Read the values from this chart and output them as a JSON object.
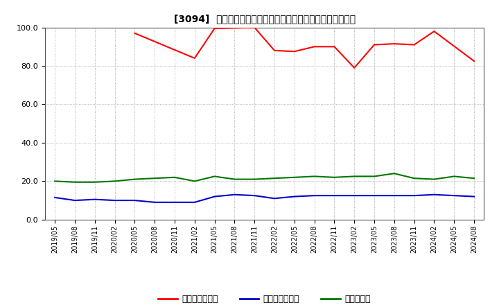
{
  "title": "[3094]  売上債権回転率、買入債務回転率、在庫回転率の推移",
  "background_color": "#ffffff",
  "grid_color": "#999999",
  "ylim": [
    0.0,
    100.0
  ],
  "yticks": [
    0.0,
    20.0,
    40.0,
    60.0,
    80.0,
    100.0
  ],
  "series": [
    {
      "name": "売上債権回転率",
      "color": "#ff0000",
      "x_indices": [
        4,
        7,
        8,
        10,
        11,
        12,
        13,
        14,
        15,
        16,
        17,
        18,
        19,
        21
      ],
      "values": [
        97.0,
        84.0,
        99.5,
        100.0,
        88.0,
        87.5,
        90.0,
        90.0,
        79.0,
        91.0,
        91.5,
        91.0,
        98.0,
        82.5
      ]
    },
    {
      "name": "買入債務回転率",
      "color": "#0000cc",
      "x_indices": [
        0,
        1,
        2,
        3,
        4,
        5,
        6,
        7,
        8,
        9,
        10,
        11,
        12,
        13,
        14,
        15,
        16,
        17,
        18,
        19,
        20,
        21
      ],
      "values": [
        11.5,
        10.0,
        10.5,
        10.0,
        10.0,
        9.0,
        9.0,
        9.0,
        12.0,
        13.0,
        12.5,
        11.0,
        12.0,
        12.5,
        12.5,
        12.5,
        12.5,
        12.5,
        12.5,
        13.0,
        12.5,
        12.0
      ]
    },
    {
      "name": "在庫回転率",
      "color": "#007700",
      "x_indices": [
        0,
        1,
        2,
        3,
        4,
        5,
        6,
        7,
        8,
        9,
        10,
        11,
        12,
        13,
        14,
        15,
        16,
        17,
        18,
        19,
        20,
        21
      ],
      "values": [
        20.0,
        19.5,
        19.5,
        20.0,
        21.0,
        21.5,
        22.0,
        20.0,
        22.5,
        21.0,
        21.0,
        21.5,
        22.0,
        22.5,
        22.0,
        22.5,
        22.5,
        24.0,
        21.5,
        21.0,
        22.5,
        21.5
      ]
    }
  ],
  "xtick_labels": [
    "2019/05",
    "2019/08",
    "2019/11",
    "2020/02",
    "2020/05",
    "2020/08",
    "2020/11",
    "2021/02",
    "2021/05",
    "2021/08",
    "2021/11",
    "2022/02",
    "2022/05",
    "2022/08",
    "2022/11",
    "2023/02",
    "2023/05",
    "2023/08",
    "2023/11",
    "2024/02",
    "2024/05",
    "2024/08"
  ],
  "legend_entries": [
    "売上債権回転率",
    "買入債務回転率",
    "在庫回転率"
  ],
  "legend_colors": [
    "#ff0000",
    "#0000cc",
    "#007700"
  ],
  "linewidth": 1.5
}
